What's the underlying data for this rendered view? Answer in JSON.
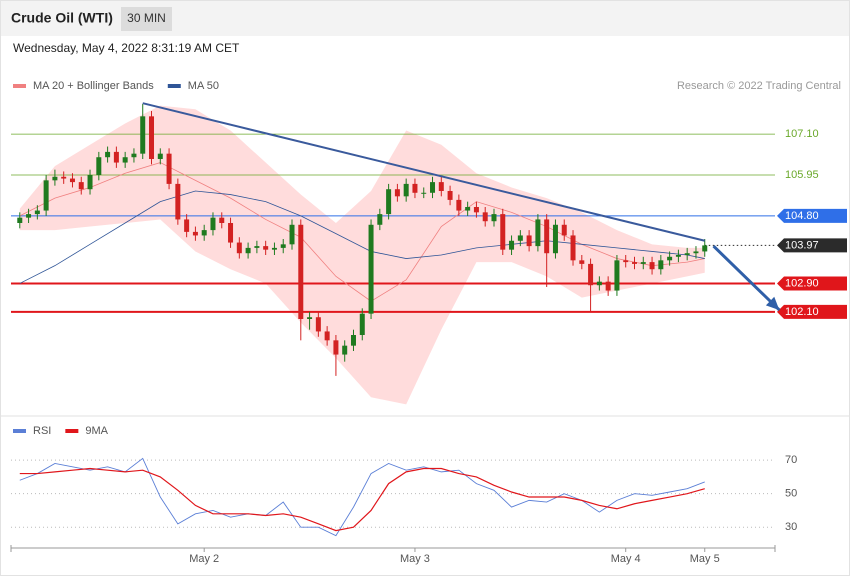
{
  "chart_data": [
    {
      "type": "candlestick",
      "title": "Crude Oil (WTI)",
      "interval": "30 MIN",
      "subtitle": "Wednesday, May 4, 2022 8:31:19 AM CET",
      "credit": "Research © 2022 Trading Central",
      "legend": [
        {
          "name": "MA 20 + Bollinger Bands",
          "color": "#f08080"
        },
        {
          "name": "MA 50",
          "color": "#2f5597"
        }
      ],
      "xlim": [
        -1,
        86
      ],
      "ylim": [
        99.2,
        108.2
      ],
      "up_color": "#1f7a1f",
      "down_color": "#d32222",
      "ohlc": [
        [
          104.6,
          104.9,
          104.45,
          104.75
        ],
        [
          104.75,
          105.0,
          104.6,
          104.85
        ],
        [
          104.85,
          105.1,
          104.7,
          104.95
        ],
        [
          104.95,
          105.95,
          104.8,
          105.8
        ],
        [
          105.8,
          106.1,
          105.65,
          105.9
        ],
        [
          105.9,
          106.05,
          105.7,
          105.85
        ],
        [
          105.85,
          106.0,
          105.6,
          105.75
        ],
        [
          105.75,
          105.9,
          105.4,
          105.55
        ],
        [
          105.55,
          106.1,
          105.4,
          105.95
        ],
        [
          105.95,
          106.6,
          105.8,
          106.45
        ],
        [
          106.45,
          106.75,
          106.3,
          106.6
        ],
        [
          106.6,
          106.75,
          106.15,
          106.3
        ],
        [
          106.3,
          106.6,
          106.15,
          106.45
        ],
        [
          106.45,
          106.7,
          106.3,
          106.55
        ],
        [
          106.55,
          107.95,
          106.4,
          107.6
        ],
        [
          107.6,
          107.75,
          106.25,
          106.4
        ],
        [
          106.4,
          106.7,
          106.25,
          106.55
        ],
        [
          106.55,
          106.7,
          105.55,
          105.7
        ],
        [
          105.7,
          105.85,
          104.55,
          104.7
        ],
        [
          104.7,
          104.85,
          104.2,
          104.35
        ],
        [
          104.35,
          104.5,
          104.1,
          104.25
        ],
        [
          104.25,
          104.55,
          104.1,
          104.4
        ],
        [
          104.4,
          104.9,
          104.25,
          104.75
        ],
        [
          104.75,
          104.9,
          104.45,
          104.6
        ],
        [
          104.6,
          104.75,
          103.9,
          104.05
        ],
        [
          104.05,
          104.2,
          103.6,
          103.75
        ],
        [
          103.75,
          104.05,
          103.6,
          103.9
        ],
        [
          103.9,
          104.1,
          103.75,
          103.95
        ],
        [
          103.95,
          104.1,
          103.7,
          103.85
        ],
        [
          103.85,
          104.05,
          103.7,
          103.9
        ],
        [
          103.9,
          104.15,
          103.75,
          104.0
        ],
        [
          104.0,
          104.7,
          103.85,
          104.55
        ],
        [
          104.55,
          104.7,
          101.3,
          101.9
        ],
        [
          101.9,
          102.1,
          101.6,
          101.95
        ],
        [
          101.95,
          102.1,
          101.4,
          101.55
        ],
        [
          101.55,
          101.7,
          101.15,
          101.3
        ],
        [
          101.3,
          101.45,
          100.3,
          100.9
        ],
        [
          100.9,
          101.3,
          100.7,
          101.15
        ],
        [
          101.15,
          101.6,
          101.0,
          101.45
        ],
        [
          101.45,
          102.2,
          101.3,
          102.05
        ],
        [
          102.05,
          104.7,
          101.9,
          104.55
        ],
        [
          104.55,
          105.0,
          104.4,
          104.85
        ],
        [
          104.85,
          105.7,
          104.7,
          105.55
        ],
        [
          105.55,
          105.7,
          105.2,
          105.35
        ],
        [
          105.35,
          105.85,
          105.2,
          105.7
        ],
        [
          105.7,
          105.85,
          105.3,
          105.45
        ],
        [
          105.45,
          105.6,
          105.3,
          105.45
        ],
        [
          105.45,
          105.9,
          105.3,
          105.75
        ],
        [
          105.75,
          105.9,
          105.35,
          105.5
        ],
        [
          105.5,
          105.65,
          105.1,
          105.25
        ],
        [
          105.25,
          105.4,
          104.8,
          104.95
        ],
        [
          104.95,
          105.2,
          104.8,
          105.05
        ],
        [
          105.05,
          105.2,
          104.75,
          104.9
        ],
        [
          104.9,
          105.05,
          104.5,
          104.65
        ],
        [
          104.65,
          105.0,
          104.5,
          104.85
        ],
        [
          104.85,
          105.0,
          103.7,
          103.85
        ],
        [
          103.85,
          104.25,
          103.7,
          104.1
        ],
        [
          104.1,
          104.4,
          103.95,
          104.25
        ],
        [
          104.25,
          104.4,
          103.8,
          103.95
        ],
        [
          103.95,
          104.85,
          103.8,
          104.7
        ],
        [
          104.7,
          104.85,
          102.8,
          103.75
        ],
        [
          103.75,
          104.7,
          103.6,
          104.55
        ],
        [
          104.55,
          104.7,
          104.1,
          104.25
        ],
        [
          104.25,
          104.4,
          103.4,
          103.55
        ],
        [
          103.55,
          103.7,
          103.3,
          103.45
        ],
        [
          103.45,
          103.6,
          102.1,
          102.85
        ],
        [
          102.85,
          103.1,
          102.7,
          102.95
        ],
        [
          102.95,
          103.1,
          102.55,
          102.7
        ],
        [
          102.7,
          103.7,
          102.55,
          103.55
        ],
        [
          103.55,
          103.7,
          103.35,
          103.5
        ],
        [
          103.5,
          103.65,
          103.3,
          103.45
        ],
        [
          103.45,
          103.65,
          103.3,
          103.5
        ],
        [
          103.5,
          103.65,
          103.15,
          103.3
        ],
        [
          103.3,
          103.7,
          103.15,
          103.55
        ],
        [
          103.55,
          103.8,
          103.4,
          103.65
        ],
        [
          103.65,
          103.85,
          103.5,
          103.7
        ],
        [
          103.7,
          103.9,
          103.55,
          103.75
        ],
        [
          103.75,
          103.95,
          103.6,
          103.8
        ],
        [
          103.8,
          104.15,
          103.65,
          103.97
        ]
      ],
      "overlays": {
        "x": [
          0,
          4,
          8,
          12,
          16,
          20,
          24,
          28,
          32,
          36,
          40,
          44,
          48,
          52,
          56,
          60,
          64,
          68,
          72,
          76,
          78
        ],
        "ma20": [
          104.8,
          105.3,
          105.6,
          106.0,
          106.3,
          105.8,
          105.3,
          104.7,
          104.2,
          103.1,
          102.4,
          103.0,
          104.5,
          105.2,
          104.9,
          104.5,
          104.0,
          103.6,
          103.4,
          103.5,
          103.6
        ],
        "ma50": [
          102.9,
          103.4,
          104.0,
          104.6,
          105.2,
          105.5,
          105.4,
          105.2,
          104.8,
          104.3,
          103.8,
          103.6,
          103.7,
          103.9,
          104.0,
          104.1,
          104.0,
          103.9,
          103.8,
          103.7,
          103.6
        ],
        "bb_upper": [
          105.0,
          106.2,
          106.8,
          107.4,
          107.9,
          107.8,
          107.2,
          106.3,
          105.4,
          104.6,
          105.5,
          107.2,
          106.8,
          106.0,
          105.6,
          105.3,
          104.9,
          104.4,
          104.0,
          103.9,
          103.9
        ],
        "bb_lower": [
          104.4,
          104.4,
          104.5,
          104.6,
          104.7,
          103.8,
          103.3,
          102.9,
          101.8,
          100.8,
          99.7,
          99.5,
          101.6,
          103.5,
          103.5,
          103.1,
          102.5,
          102.7,
          102.9,
          103.1,
          103.2
        ],
        "band_color": "#ffdcdc"
      },
      "levels": [
        {
          "value": 107.1,
          "label": "107.10",
          "color": "#6aa82a",
          "tag": false,
          "width": 0.8,
          "dotted": false
        },
        {
          "value": 105.95,
          "label": "105.95",
          "color": "#6aa82a",
          "tag": false,
          "width": 0.8,
          "dotted": false
        },
        {
          "value": 104.8,
          "label": "104.80",
          "color": "#2f6fe8",
          "tag": true,
          "width": 1,
          "dotted": false
        },
        {
          "value": 103.97,
          "label": "103.97",
          "color": "#2b2b2b",
          "tag": true,
          "width": 1,
          "dotted": true
        },
        {
          "value": 102.9,
          "label": "102.90",
          "color": "#e0161b",
          "tag": true,
          "width": 2,
          "dotted": false
        },
        {
          "value": 102.1,
          "label": "102.10",
          "color": "#e0161b",
          "tag": true,
          "width": 2,
          "dotted": false
        }
      ],
      "trendline": {
        "x": [
          14,
          78
        ],
        "y": [
          107.97,
          104.1
        ],
        "color": "#3a5a9c"
      },
      "arrow": {
        "x": [
          79,
          86.5
        ],
        "y": [
          103.95,
          102.15
        ],
        "color": "#2f5fa8"
      }
    },
    {
      "type": "line",
      "x": [
        0,
        2,
        4,
        6,
        8,
        10,
        12,
        14,
        16,
        18,
        20,
        22,
        24,
        26,
        28,
        30,
        32,
        34,
        36,
        38,
        40,
        42,
        44,
        46,
        48,
        50,
        52,
        54,
        56,
        58,
        60,
        62,
        64,
        66,
        68,
        70,
        72,
        74,
        76,
        78
      ],
      "series": [
        {
          "name": "RSI",
          "color": "#5b7fd6",
          "values": [
            58,
            62,
            68,
            66,
            64,
            66,
            63,
            71,
            48,
            32,
            38,
            40,
            36,
            38,
            37,
            45,
            30,
            30,
            25,
            42,
            62,
            68,
            64,
            66,
            63,
            64,
            56,
            52,
            42,
            46,
            45,
            50,
            46,
            39,
            46,
            50,
            49,
            51,
            53,
            57
          ]
        },
        {
          "name": "9MA",
          "color": "#e0161b",
          "values": [
            62,
            62,
            63,
            64,
            65,
            64,
            63,
            64,
            60,
            52,
            43,
            38,
            38,
            38,
            37,
            38,
            36,
            32,
            28,
            30,
            40,
            56,
            63,
            65,
            65,
            62,
            60,
            55,
            51,
            48,
            48,
            48,
            46,
            43,
            41,
            44,
            46,
            48,
            50,
            53
          ]
        }
      ],
      "xlim": [
        -1,
        86
      ],
      "ylim": [
        20,
        82
      ],
      "yticks": [
        30,
        50,
        70
      ],
      "grid": true,
      "xticks": [
        {
          "value": 21,
          "label": "May 2"
        },
        {
          "value": 45,
          "label": "May 3"
        },
        {
          "value": 69,
          "label": "May 4"
        },
        {
          "value": 78,
          "label": "May 5"
        }
      ]
    }
  ]
}
